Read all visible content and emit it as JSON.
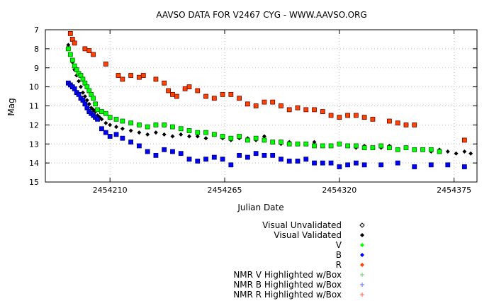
{
  "chart_data": {
    "type": "scatter",
    "title": "AAVSO DATA FOR V2467 CYG - WWW.AAVSO.ORG",
    "xlabel": "Julian Date",
    "ylabel": "Mag",
    "xlim": [
      2454179,
      2454386
    ],
    "ylim": [
      7,
      15
    ],
    "y_inverted": true,
    "x_ticks": [
      2454210,
      2454265,
      2454320,
      2454375
    ],
    "x_tick_labels": [
      "2454210",
      "2454265",
      "2454320",
      "2454375"
    ],
    "y_ticks": [
      7,
      8,
      9,
      10,
      11,
      12,
      13,
      14,
      15
    ],
    "y_tick_labels": [
      "7",
      "8",
      "9",
      "10",
      "11",
      "12",
      "13",
      "14",
      "15"
    ],
    "grid": true,
    "legend_position": "bottom-right, below plot",
    "legend": [
      {
        "label": "Visual Unvalidated",
        "marker": "open-diamond",
        "color": "#000000"
      },
      {
        "label": "Visual Validated",
        "marker": "diamond",
        "color": "#000000"
      },
      {
        "label": "V",
        "marker": "diamond",
        "color": "#00ff00"
      },
      {
        "label": "B",
        "marker": "diamond",
        "color": "#0000ff"
      },
      {
        "label": "R",
        "marker": "diamond",
        "color": "#ff4400"
      },
      {
        "label": "NMR V Highlighted w/Box",
        "marker": "plus",
        "color": "#66cc66"
      },
      {
        "label": "NMR B Highlighted w/Box",
        "marker": "plus",
        "color": "#6666ff"
      },
      {
        "label": "NMR R Highlighted w/Box",
        "marker": "plus",
        "color": "#ff6644"
      }
    ],
    "series": [
      {
        "key": "visual",
        "legend_index": 1,
        "marker": "diamond",
        "color": "#000000",
        "points": [
          [
            2454190,
            7.8
          ],
          [
            2454191,
            8.3
          ],
          [
            2454192,
            8.7
          ],
          [
            2454193,
            9.1
          ],
          [
            2454194,
            9.4
          ],
          [
            2454195,
            9.7
          ],
          [
            2454196,
            10.0
          ],
          [
            2454197,
            10.3
          ],
          [
            2454198,
            10.5
          ],
          [
            2454199,
            10.7
          ],
          [
            2454200,
            10.9
          ],
          [
            2454201,
            11.1
          ],
          [
            2454202,
            11.2
          ],
          [
            2454203,
            11.3
          ],
          [
            2454204,
            11.5
          ],
          [
            2454205,
            11.6
          ],
          [
            2454206,
            11.7
          ],
          [
            2454208,
            11.9
          ],
          [
            2454210,
            12.0
          ],
          [
            2454213,
            12.1
          ],
          [
            2454216,
            12.2
          ],
          [
            2454220,
            12.3
          ],
          [
            2454224,
            12.4
          ],
          [
            2454228,
            12.5
          ],
          [
            2454232,
            12.4
          ],
          [
            2454236,
            12.5
          ],
          [
            2454240,
            12.6
          ],
          [
            2454244,
            12.5
          ],
          [
            2454248,
            12.6
          ],
          [
            2454252,
            12.6
          ],
          [
            2454256,
            12.7
          ],
          [
            2454260,
            12.5
          ],
          [
            2454264,
            12.7
          ],
          [
            2454268,
            12.8
          ],
          [
            2454272,
            12.7
          ],
          [
            2454276,
            12.7
          ],
          [
            2454280,
            12.8
          ],
          [
            2454284,
            12.6
          ],
          [
            2454288,
            12.9
          ],
          [
            2454292,
            13.0
          ],
          [
            2454296,
            12.9
          ],
          [
            2454300,
            13.0
          ],
          [
            2454304,
            13.0
          ],
          [
            2454308,
            12.9
          ],
          [
            2454312,
            13.1
          ],
          [
            2454316,
            13.1
          ],
          [
            2454320,
            13.0
          ],
          [
            2454324,
            13.1
          ],
          [
            2454328,
            13.2
          ],
          [
            2454332,
            13.1
          ],
          [
            2454336,
            13.2
          ],
          [
            2454340,
            13.2
          ],
          [
            2454344,
            13.1
          ],
          [
            2454348,
            13.3
          ],
          [
            2454352,
            13.2
          ],
          [
            2454356,
            13.3
          ],
          [
            2454360,
            13.3
          ],
          [
            2454364,
            13.4
          ],
          [
            2454368,
            13.3
          ],
          [
            2454372,
            13.4
          ],
          [
            2454376,
            13.5
          ],
          [
            2454380,
            13.4
          ],
          [
            2454383,
            13.5
          ]
        ]
      },
      {
        "key": "V",
        "legend_index": 2,
        "marker": "diamond",
        "color": "#00ff00",
        "points": [
          [
            2454190,
            8.0
          ],
          [
            2454191,
            8.3
          ],
          [
            2454192,
            8.6
          ],
          [
            2454193,
            8.9
          ],
          [
            2454194,
            9.1
          ],
          [
            2454195,
            9.3
          ],
          [
            2454196,
            9.4
          ],
          [
            2454197,
            9.6
          ],
          [
            2454198,
            9.8
          ],
          [
            2454199,
            10.0
          ],
          [
            2454200,
            10.2
          ],
          [
            2454201,
            10.4
          ],
          [
            2454202,
            10.6
          ],
          [
            2454203,
            10.9
          ],
          [
            2454204,
            11.2
          ],
          [
            2454206,
            11.3
          ],
          [
            2454208,
            11.4
          ],
          [
            2454210,
            11.6
          ],
          [
            2454213,
            11.7
          ],
          [
            2454216,
            11.8
          ],
          [
            2454220,
            11.9
          ],
          [
            2454224,
            12.0
          ],
          [
            2454228,
            12.1
          ],
          [
            2454232,
            12.0
          ],
          [
            2454236,
            12.0
          ],
          [
            2454240,
            12.1
          ],
          [
            2454244,
            12.2
          ],
          [
            2454248,
            12.3
          ],
          [
            2454252,
            12.4
          ],
          [
            2454256,
            12.4
          ],
          [
            2454260,
            12.5
          ],
          [
            2454264,
            12.6
          ],
          [
            2454268,
            12.7
          ],
          [
            2454272,
            12.6
          ],
          [
            2454276,
            12.8
          ],
          [
            2454280,
            12.7
          ],
          [
            2454284,
            12.8
          ],
          [
            2454288,
            12.9
          ],
          [
            2454292,
            12.9
          ],
          [
            2454296,
            13.0
          ],
          [
            2454300,
            13.0
          ],
          [
            2454304,
            13.0
          ],
          [
            2454308,
            13.1
          ],
          [
            2454312,
            13.1
          ],
          [
            2454316,
            13.1
          ],
          [
            2454320,
            13.0
          ],
          [
            2454324,
            13.1
          ],
          [
            2454328,
            13.1
          ],
          [
            2454332,
            13.2
          ],
          [
            2454336,
            13.2
          ],
          [
            2454340,
            13.1
          ],
          [
            2454344,
            13.2
          ],
          [
            2454348,
            13.3
          ],
          [
            2454352,
            13.2
          ],
          [
            2454356,
            13.3
          ],
          [
            2454360,
            13.3
          ],
          [
            2454364,
            13.3
          ],
          [
            2454368,
            13.4
          ]
        ]
      },
      {
        "key": "B",
        "legend_index": 3,
        "marker": "diamond",
        "color": "#0000ff",
        "points": [
          [
            2454190,
            9.8
          ],
          [
            2454191,
            9.9
          ],
          [
            2454192,
            10.0
          ],
          [
            2454193,
            10.1
          ],
          [
            2454194,
            10.3
          ],
          [
            2454195,
            10.4
          ],
          [
            2454196,
            10.6
          ],
          [
            2454197,
            10.7
          ],
          [
            2454198,
            10.9
          ],
          [
            2454199,
            11.1
          ],
          [
            2454200,
            11.3
          ],
          [
            2454201,
            11.4
          ],
          [
            2454202,
            11.5
          ],
          [
            2454203,
            11.6
          ],
          [
            2454204,
            11.7
          ],
          [
            2454206,
            12.2
          ],
          [
            2454208,
            12.4
          ],
          [
            2454210,
            12.6
          ],
          [
            2454213,
            12.5
          ],
          [
            2454216,
            12.7
          ],
          [
            2454220,
            12.9
          ],
          [
            2454224,
            13.1
          ],
          [
            2454228,
            13.4
          ],
          [
            2454232,
            13.6
          ],
          [
            2454236,
            13.3
          ],
          [
            2454240,
            13.4
          ],
          [
            2454244,
            13.5
          ],
          [
            2454248,
            13.8
          ],
          [
            2454252,
            13.9
          ],
          [
            2454256,
            13.8
          ],
          [
            2454260,
            13.7
          ],
          [
            2454264,
            13.8
          ],
          [
            2454268,
            14.1
          ],
          [
            2454272,
            13.6
          ],
          [
            2454276,
            13.7
          ],
          [
            2454280,
            13.5
          ],
          [
            2454284,
            13.6
          ],
          [
            2454288,
            13.6
          ],
          [
            2454292,
            13.8
          ],
          [
            2454296,
            13.9
          ],
          [
            2454300,
            13.9
          ],
          [
            2454304,
            13.8
          ],
          [
            2454308,
            14.0
          ],
          [
            2454312,
            14.0
          ],
          [
            2454316,
            14.0
          ],
          [
            2454320,
            14.2
          ],
          [
            2454324,
            14.1
          ],
          [
            2454328,
            14.0
          ],
          [
            2454332,
            14.1
          ],
          [
            2454340,
            14.1
          ],
          [
            2454348,
            14.0
          ],
          [
            2454356,
            14.2
          ],
          [
            2454364,
            14.1
          ],
          [
            2454372,
            14.1
          ],
          [
            2454380,
            14.2
          ]
        ]
      },
      {
        "key": "R",
        "legend_index": 4,
        "marker": "diamond",
        "color": "#ff4400",
        "points": [
          [
            2454191,
            7.2
          ],
          [
            2454192,
            7.5
          ],
          [
            2454193,
            7.7
          ],
          [
            2454198,
            8.0
          ],
          [
            2454200,
            8.1
          ],
          [
            2454202,
            8.3
          ],
          [
            2454208,
            8.8
          ],
          [
            2454214,
            9.4
          ],
          [
            2454216,
            9.6
          ],
          [
            2454220,
            9.4
          ],
          [
            2454224,
            9.5
          ],
          [
            2454226,
            9.4
          ],
          [
            2454232,
            9.6
          ],
          [
            2454236,
            9.8
          ],
          [
            2454238,
            10.2
          ],
          [
            2454240,
            10.4
          ],
          [
            2454242,
            10.5
          ],
          [
            2454246,
            10.1
          ],
          [
            2454248,
            10.0
          ],
          [
            2454252,
            10.2
          ],
          [
            2454256,
            10.5
          ],
          [
            2454260,
            10.6
          ],
          [
            2454264,
            10.4
          ],
          [
            2454268,
            10.4
          ],
          [
            2454272,
            10.6
          ],
          [
            2454276,
            10.9
          ],
          [
            2454280,
            11.0
          ],
          [
            2454284,
            10.8
          ],
          [
            2454288,
            10.8
          ],
          [
            2454292,
            11.0
          ],
          [
            2454296,
            11.2
          ],
          [
            2454300,
            11.1
          ],
          [
            2454304,
            11.2
          ],
          [
            2454308,
            11.2
          ],
          [
            2454312,
            11.3
          ],
          [
            2454316,
            11.5
          ],
          [
            2454320,
            11.6
          ],
          [
            2454324,
            11.5
          ],
          [
            2454328,
            11.5
          ],
          [
            2454332,
            11.6
          ],
          [
            2454336,
            11.7
          ],
          [
            2454344,
            11.8
          ],
          [
            2454348,
            11.9
          ],
          [
            2454352,
            12.0
          ],
          [
            2454356,
            12.0
          ],
          [
            2454380,
            12.8
          ]
        ]
      }
    ]
  }
}
